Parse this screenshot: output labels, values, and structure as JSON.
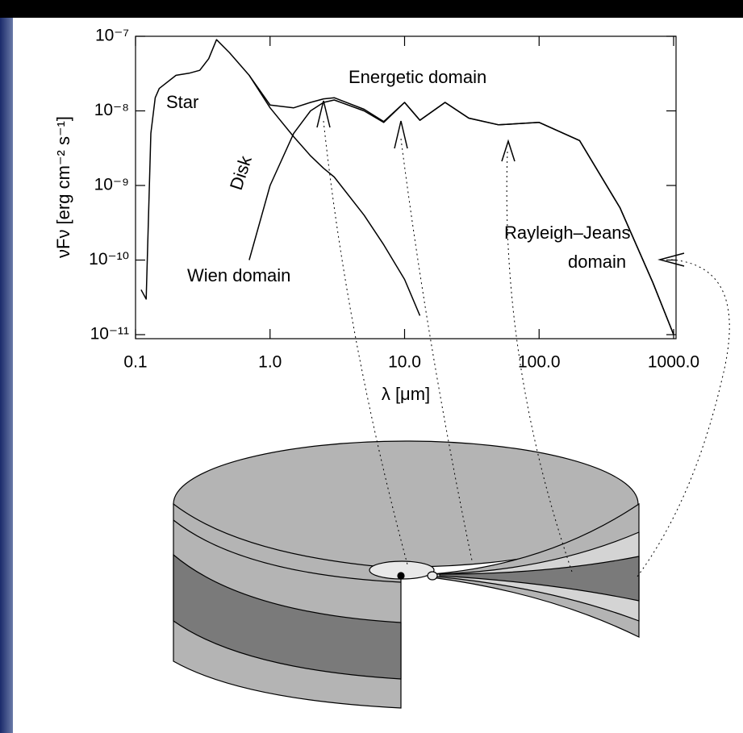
{
  "chart_data": {
    "type": "line",
    "x": [
      0.11,
      0.12,
      0.13,
      0.14,
      0.15,
      0.2,
      0.25,
      0.3,
      0.35,
      0.4,
      0.5,
      0.7,
      1.0,
      1.5,
      2,
      2.5,
      3,
      5,
      7,
      10,
      13,
      20,
      30,
      50,
      100,
      200,
      400,
      700,
      1000
    ],
    "series": [
      {
        "name": "Star",
        "color": "#000000",
        "values": [
          4e-11,
          3e-11,
          5e-09,
          1.5e-08,
          2e-08,
          3e-08,
          3.2e-08,
          3.5e-08,
          5e-08,
          9e-08,
          6e-08,
          3e-08,
          1.1e-08,
          4.5e-09,
          2.5e-09,
          1.7e-09,
          1.3e-09,
          4e-10,
          1.6e-10,
          5.5e-11,
          1.8e-11,
          null,
          null,
          null,
          null,
          null,
          null,
          null,
          null
        ]
      },
      {
        "name": "Disk",
        "color": "#000000",
        "values": [
          null,
          null,
          null,
          null,
          null,
          null,
          null,
          null,
          null,
          null,
          null,
          1e-10,
          1e-09,
          5e-09,
          1e-08,
          1.3e-08,
          1.4e-08,
          1e-08,
          7e-09,
          1.3e-08,
          7.5e-09,
          1.3e-08,
          8e-09,
          6.5e-09,
          7e-09,
          4e-09,
          5e-10,
          5e-11,
          1e-11
        ]
      },
      {
        "color": "#000000",
        "values": [
          null,
          null,
          null,
          null,
          null,
          null,
          null,
          null,
          null,
          null,
          null,
          3e-08,
          1.2e-08,
          1.1e-08,
          1.3e-08,
          1.45e-08,
          1.5e-08,
          1.05e-08,
          7.2e-09,
          1.3e-08,
          7.5e-09,
          1.3e-08,
          8e-09,
          6.5e-09,
          7e-09,
          4e-09,
          5e-10,
          5e-11,
          1e-11
        ]
      }
    ],
    "xlabel": "λ [μm]",
    "ylabel": "νFν [erg cm⁻² s⁻¹]",
    "annotations": [
      "Energetic domain",
      "Wien domain",
      "Rayleigh–Jeans",
      "domain"
    ],
    "xlog": true,
    "ylog": true,
    "xlim": [
      0.1,
      1000
    ],
    "ylim": [
      1e-11,
      1e-07
    ],
    "xticks": [
      0.1,
      {
        "value": 1,
        "label": "1.0"
      },
      {
        "value": 10,
        "label": "10.0"
      },
      {
        "value": 100,
        "label": "100.0"
      },
      {
        "value": 1000,
        "label": "1000.0"
      }
    ],
    "yticks": [
      {
        "value": 1e-11,
        "label": "10⁻¹¹"
      },
      {
        "value": 1e-10,
        "label": "10⁻¹⁰"
      },
      {
        "value": 1e-09,
        "label": "10⁻⁹"
      },
      {
        "value": 1e-08,
        "label": "10⁻⁸"
      },
      {
        "value": 1e-07,
        "label": "10⁻⁷"
      }
    ]
  }
}
